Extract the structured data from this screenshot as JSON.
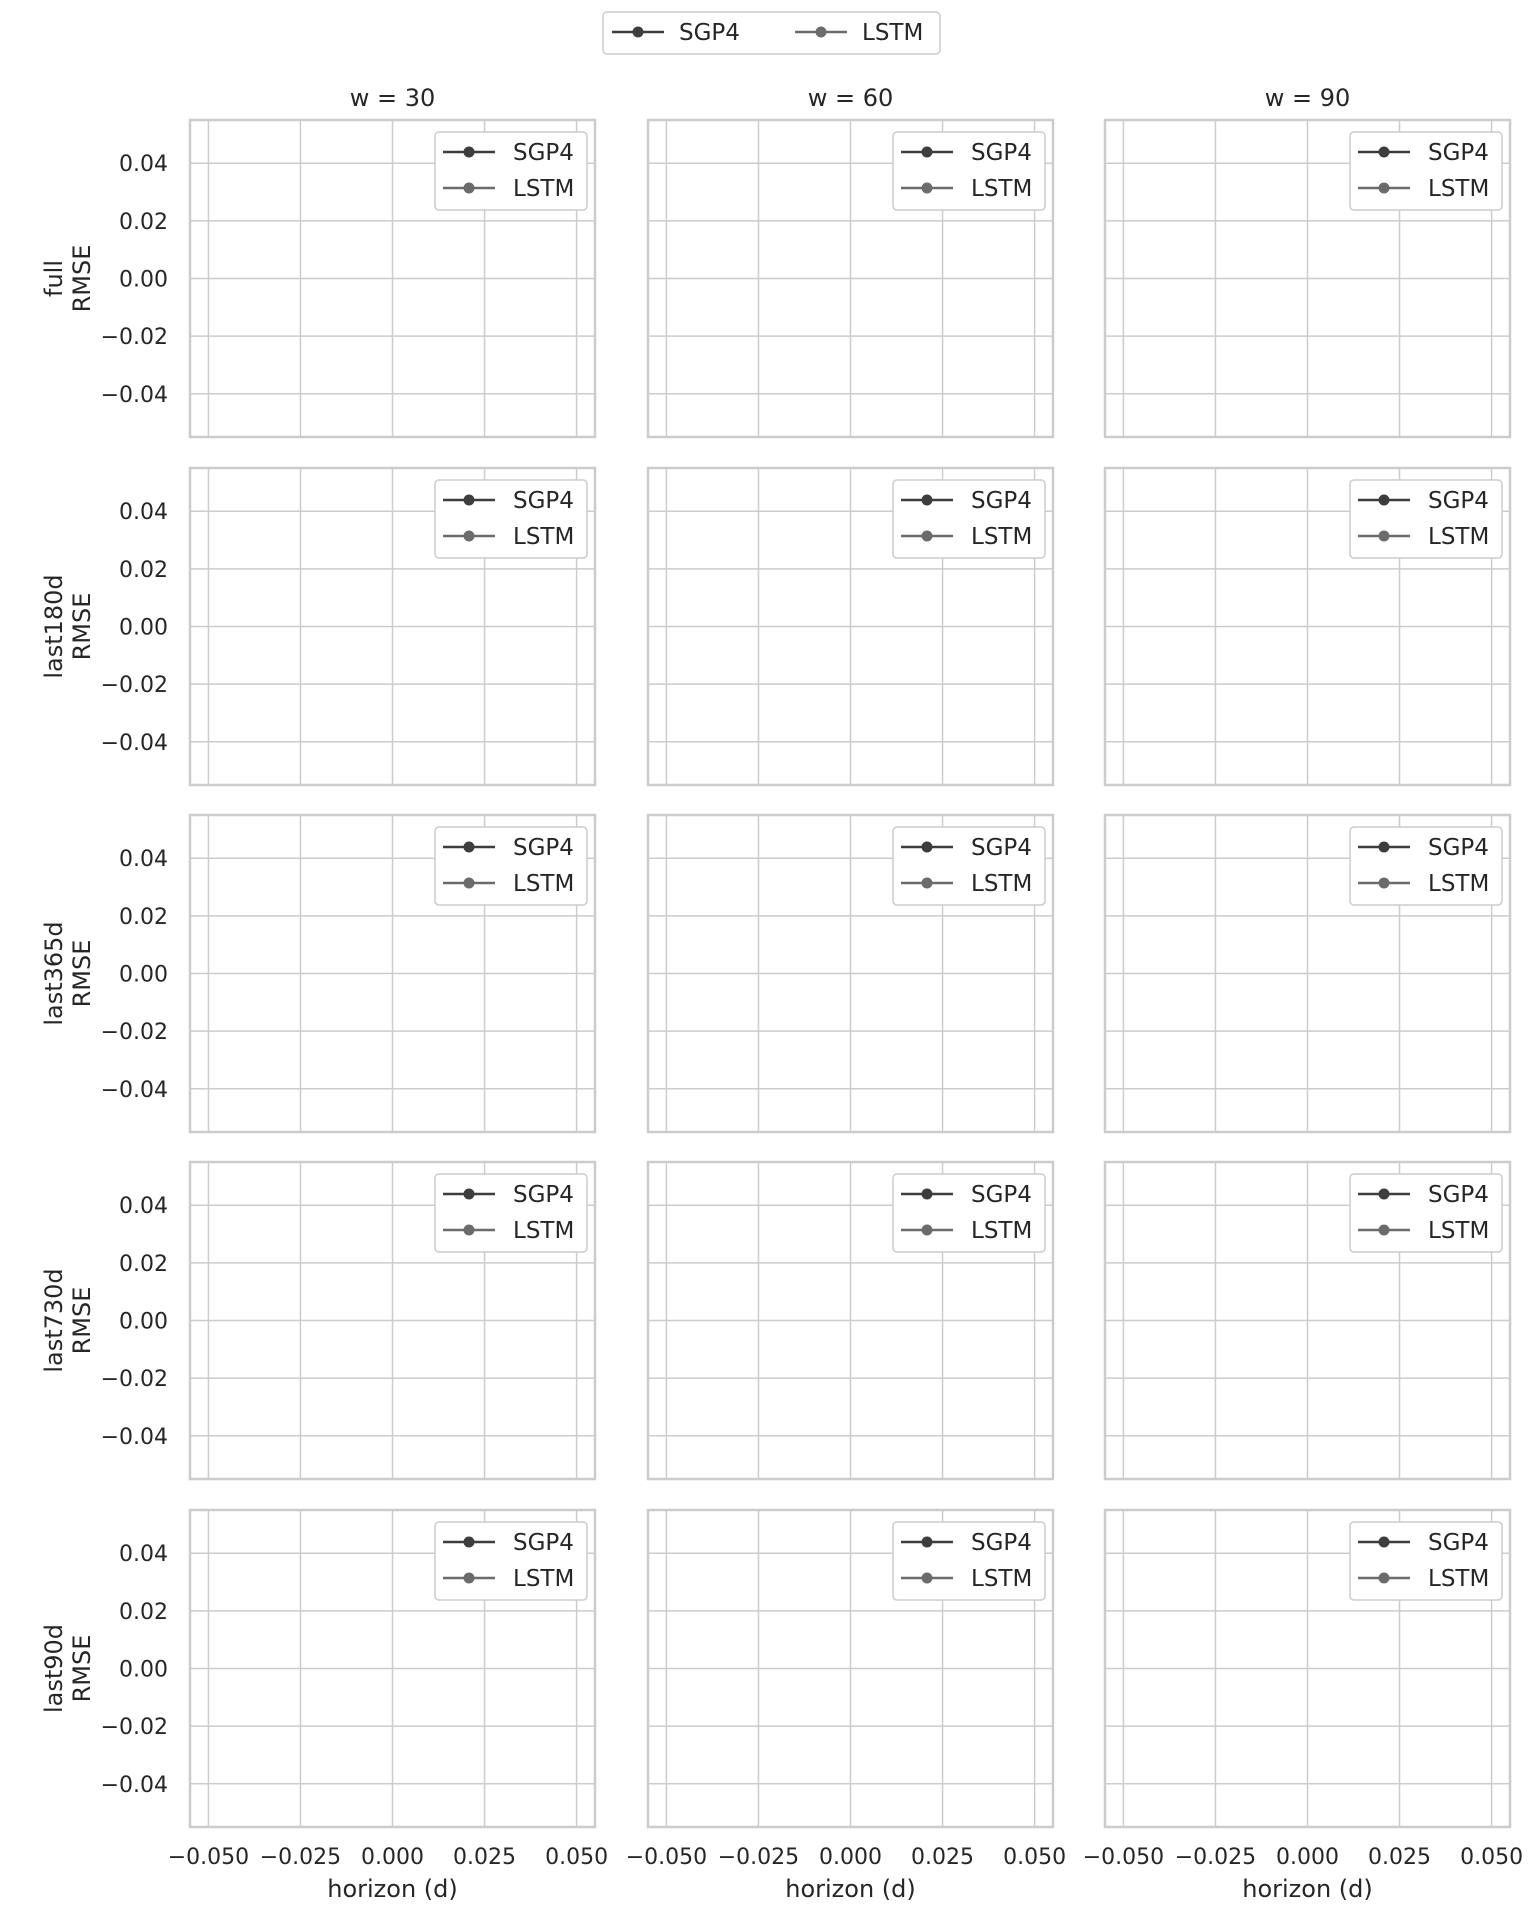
{
  "chart_data": {
    "type": "line",
    "layout": "facet-grid",
    "columns": [
      {
        "label": "w = 30"
      },
      {
        "label": "w = 60"
      },
      {
        "label": "w = 90"
      }
    ],
    "rows": [
      {
        "label": "full"
      },
      {
        "label": "last180d"
      },
      {
        "label": "last365d"
      },
      {
        "label": "last730d"
      },
      {
        "label": "last90d"
      }
    ],
    "ylabel": "RMSE",
    "xlabel": "horizon (d)",
    "xlim": [
      -0.055,
      0.055
    ],
    "ylim": [
      -0.055,
      0.055
    ],
    "xticks": [
      "−0.050",
      "−0.025",
      "0.000",
      "0.025",
      "0.050"
    ],
    "xtick_values": [
      -0.05,
      -0.025,
      0,
      0.025,
      0.05
    ],
    "yticks": [
      "0.04",
      "0.02",
      "0.00",
      "−0.02",
      "−0.04"
    ],
    "ytick_values": [
      0.04,
      0.02,
      0,
      -0.02,
      -0.04
    ],
    "grid": true,
    "legend_position": "top-right (each panel) and top-center (figure)",
    "series": [
      {
        "name": "SGP4",
        "color": "#3d3d3d",
        "values": []
      },
      {
        "name": "LSTM",
        "color": "#6b6b6b",
        "values": []
      }
    ]
  }
}
